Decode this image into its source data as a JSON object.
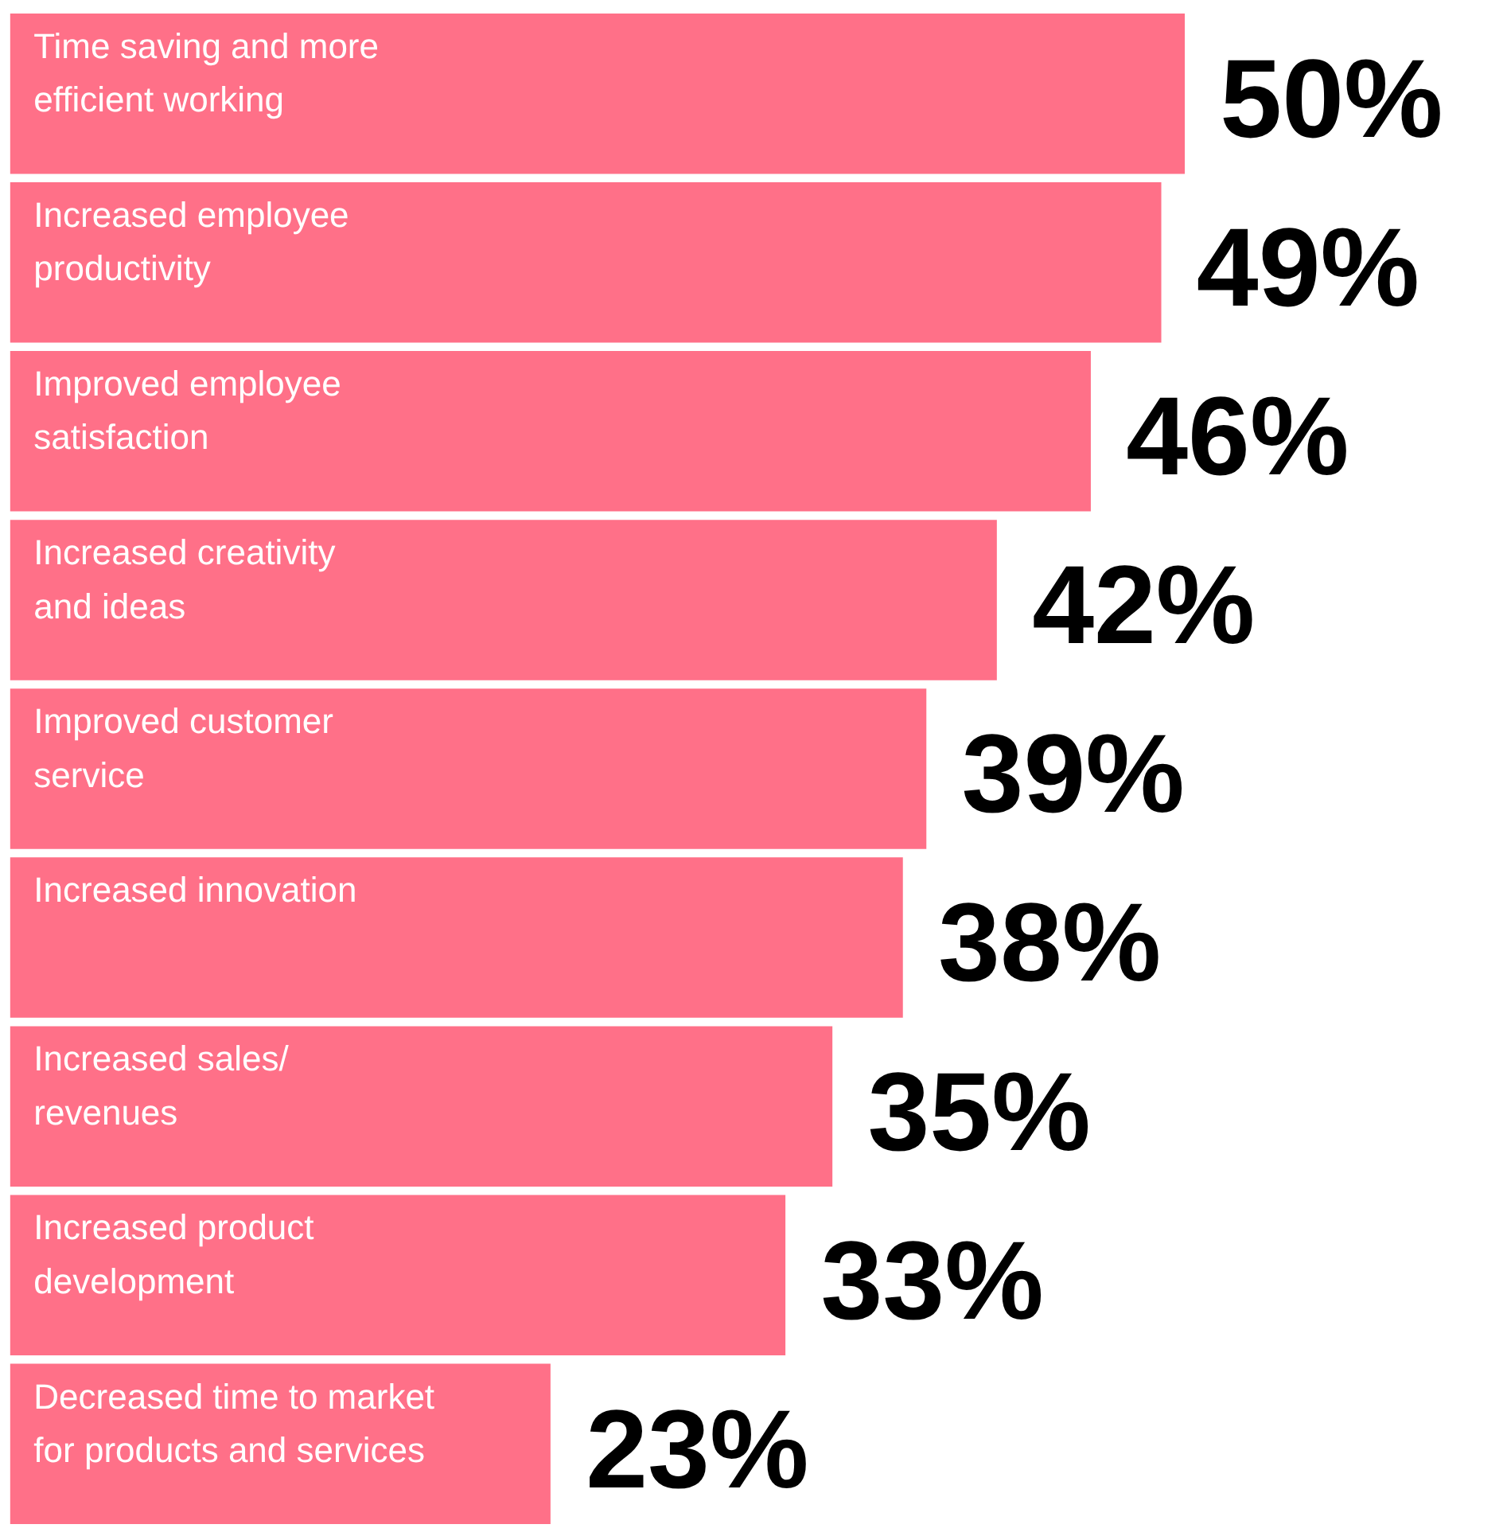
{
  "chart_data": {
    "type": "bar",
    "orientation": "horizontal",
    "categories": [
      "Time saving and more\nefficient working",
      "Increased employee\nproductivity",
      "Improved employee\nsatisfaction",
      "Increased creativity\nand ideas",
      "Improved customer\nservice",
      "Increased innovation",
      "Increased sales/\nrevenues",
      "Increased product\ndevelopment",
      "Decreased time to market\nfor products and services"
    ],
    "values": [
      50,
      49,
      46,
      42,
      39,
      38,
      35,
      33,
      23
    ],
    "value_labels": [
      "50%",
      "49%",
      "46%",
      "42%",
      "39%",
      "38%",
      "35%",
      "33%",
      "23%"
    ],
    "color": "#ff7088"
  }
}
